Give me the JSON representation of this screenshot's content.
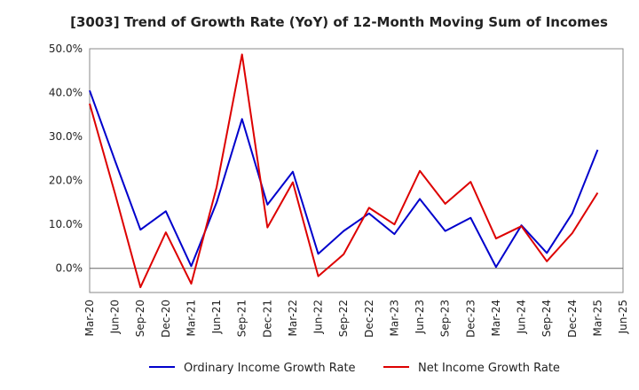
{
  "chart_data": {
    "type": "line",
    "title": "[3003]  Trend of Growth Rate (YoY) of 12-Month Moving Sum of Incomes",
    "xlabel": "",
    "ylabel": "",
    "ylim": [
      -5.5,
      50
    ],
    "yticks": [
      0,
      10,
      20,
      30,
      40,
      50
    ],
    "ytick_labels": [
      "0.0%",
      "10.0%",
      "20.0%",
      "30.0%",
      "40.0%",
      "50.0%"
    ],
    "x_tick_labels": [
      "Mar-20",
      "Jun-20",
      "Sep-20",
      "Dec-20",
      "Mar-21",
      "Jun-21",
      "Sep-21",
      "Dec-21",
      "Mar-22",
      "Jun-22",
      "Sep-22",
      "Dec-22",
      "Mar-23",
      "Jun-23",
      "Sep-23",
      "Dec-23",
      "Mar-24",
      "Jun-24",
      "Sep-24",
      "Dec-24",
      "Mar-25",
      "Jun-25"
    ],
    "grid": true,
    "legend_position": "bottom",
    "series": [
      {
        "name": "Ordinary Income Growth Rate",
        "color": "#0000cc",
        "values": [
          40.5,
          24.5,
          8.8,
          13.0,
          0.5,
          15.0,
          34.0,
          14.5,
          22.0,
          3.3,
          8.5,
          12.5,
          7.8,
          15.8,
          8.5,
          11.5,
          0.3,
          9.8,
          3.5,
          12.5,
          27.0
        ]
      },
      {
        "name": "Net Income Growth Rate",
        "color": "#dd0000",
        "values": [
          37.5,
          17.0,
          -4.3,
          8.2,
          -3.5,
          18.5,
          48.7,
          9.3,
          19.6,
          -1.8,
          3.2,
          13.8,
          10.0,
          22.2,
          14.7,
          19.7,
          6.8,
          9.6,
          1.6,
          8.0,
          17.2
        ]
      }
    ]
  }
}
